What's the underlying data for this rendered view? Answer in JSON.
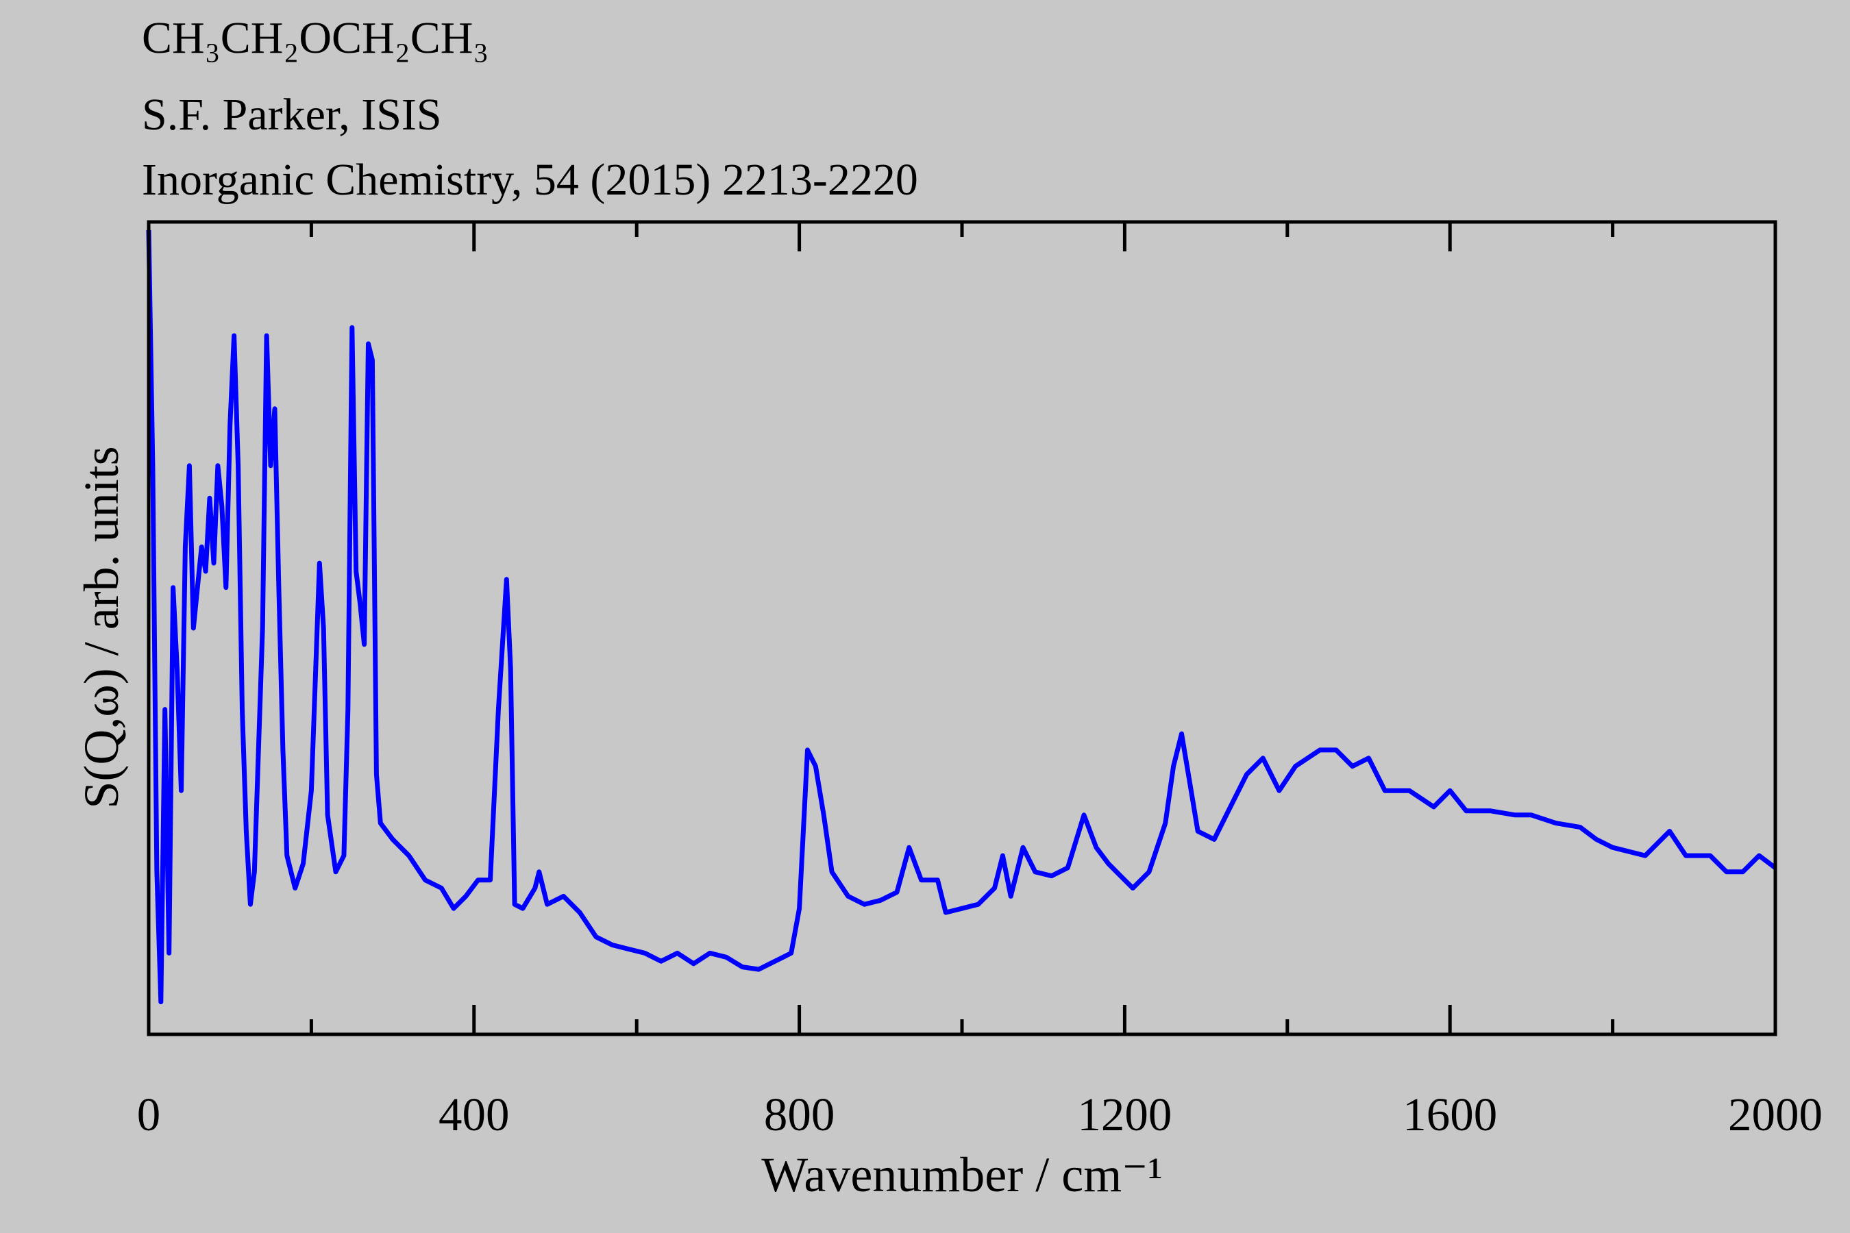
{
  "chart_data": {
    "type": "line",
    "title": "CH₃CH₂OCH₂CH₃",
    "subtitle": "S.F. Parker, ISIS",
    "reference": "Inorganic Chemistry, 54 (2015) 2213-2220",
    "xlabel": "Wavenumber / cm⁻¹",
    "ylabel": "S(Q,ω) / arb. units",
    "x": [
      0,
      5,
      10,
      15,
      20,
      25,
      30,
      35,
      40,
      45,
      50,
      55,
      60,
      65,
      70,
      75,
      80,
      85,
      90,
      95,
      100,
      105,
      110,
      115,
      120,
      125,
      130,
      140,
      145,
      150,
      155,
      160,
      165,
      170,
      180,
      190,
      200,
      210,
      215,
      220,
      230,
      240,
      245,
      250,
      255,
      260,
      265,
      270,
      275,
      280,
      285,
      300,
      320,
      340,
      360,
      375,
      390,
      405,
      420,
      430,
      440,
      445,
      450,
      460,
      475,
      480,
      490,
      510,
      530,
      550,
      570,
      590,
      610,
      630,
      650,
      670,
      690,
      710,
      730,
      750,
      770,
      790,
      800,
      810,
      820,
      830,
      840,
      860,
      880,
      900,
      920,
      935,
      950,
      970,
      980,
      1000,
      1020,
      1040,
      1050,
      1060,
      1075,
      1090,
      1110,
      1130,
      1150,
      1165,
      1180,
      1200,
      1210,
      1230,
      1250,
      1260,
      1270,
      1280,
      1290,
      1310,
      1330,
      1350,
      1370,
      1390,
      1410,
      1440,
      1460,
      1480,
      1500,
      1520,
      1550,
      1580,
      1600,
      1620,
      1650,
      1680,
      1700,
      1730,
      1760,
      1780,
      1800,
      1840,
      1870,
      1890,
      1920,
      1940,
      1960,
      1980,
      2000
    ],
    "series": [
      {
        "color": "#0000ff",
        "values": [
          99,
          70,
          20,
          4,
          40,
          10,
          55,
          45,
          30,
          60,
          70,
          50,
          55,
          60,
          57,
          66,
          58,
          70,
          65,
          55,
          75,
          86,
          70,
          40,
          25,
          16,
          20,
          50,
          86,
          70,
          77,
          55,
          35,
          22,
          18,
          21,
          30,
          58,
          50,
          27,
          20,
          22,
          40,
          87,
          57,
          53,
          48,
          85,
          83,
          32,
          26,
          24,
          22,
          19,
          18,
          15.5,
          17,
          19,
          19,
          40,
          56,
          45,
          16,
          15.5,
          18,
          20,
          16,
          17,
          15,
          12,
          11,
          10.5,
          10,
          9,
          10,
          8.7,
          10,
          9.5,
          8.3,
          8,
          9,
          10,
          15.5,
          35,
          33,
          27,
          20,
          17,
          16,
          16.5,
          17.5,
          23,
          19,
          19,
          15,
          15.5,
          16,
          18,
          22,
          17,
          23,
          20,
          19.5,
          20.5,
          27,
          23,
          21,
          19,
          18,
          20,
          26,
          33,
          37,
          31,
          25,
          24,
          28,
          32,
          34,
          30,
          33,
          35,
          35,
          33,
          34,
          30,
          30,
          28,
          30,
          27.5,
          27.5,
          27,
          27,
          26,
          25.5,
          24,
          23,
          22,
          25,
          22,
          22,
          20,
          20,
          22,
          20.5
        ]
      }
    ],
    "xlim": [
      0,
      2000
    ],
    "xticks": [
      0,
      400,
      800,
      1200,
      1600,
      2000
    ],
    "xminorticks": [
      200,
      600,
      1000,
      1400,
      1800
    ],
    "ylim": [
      0,
      100
    ]
  }
}
